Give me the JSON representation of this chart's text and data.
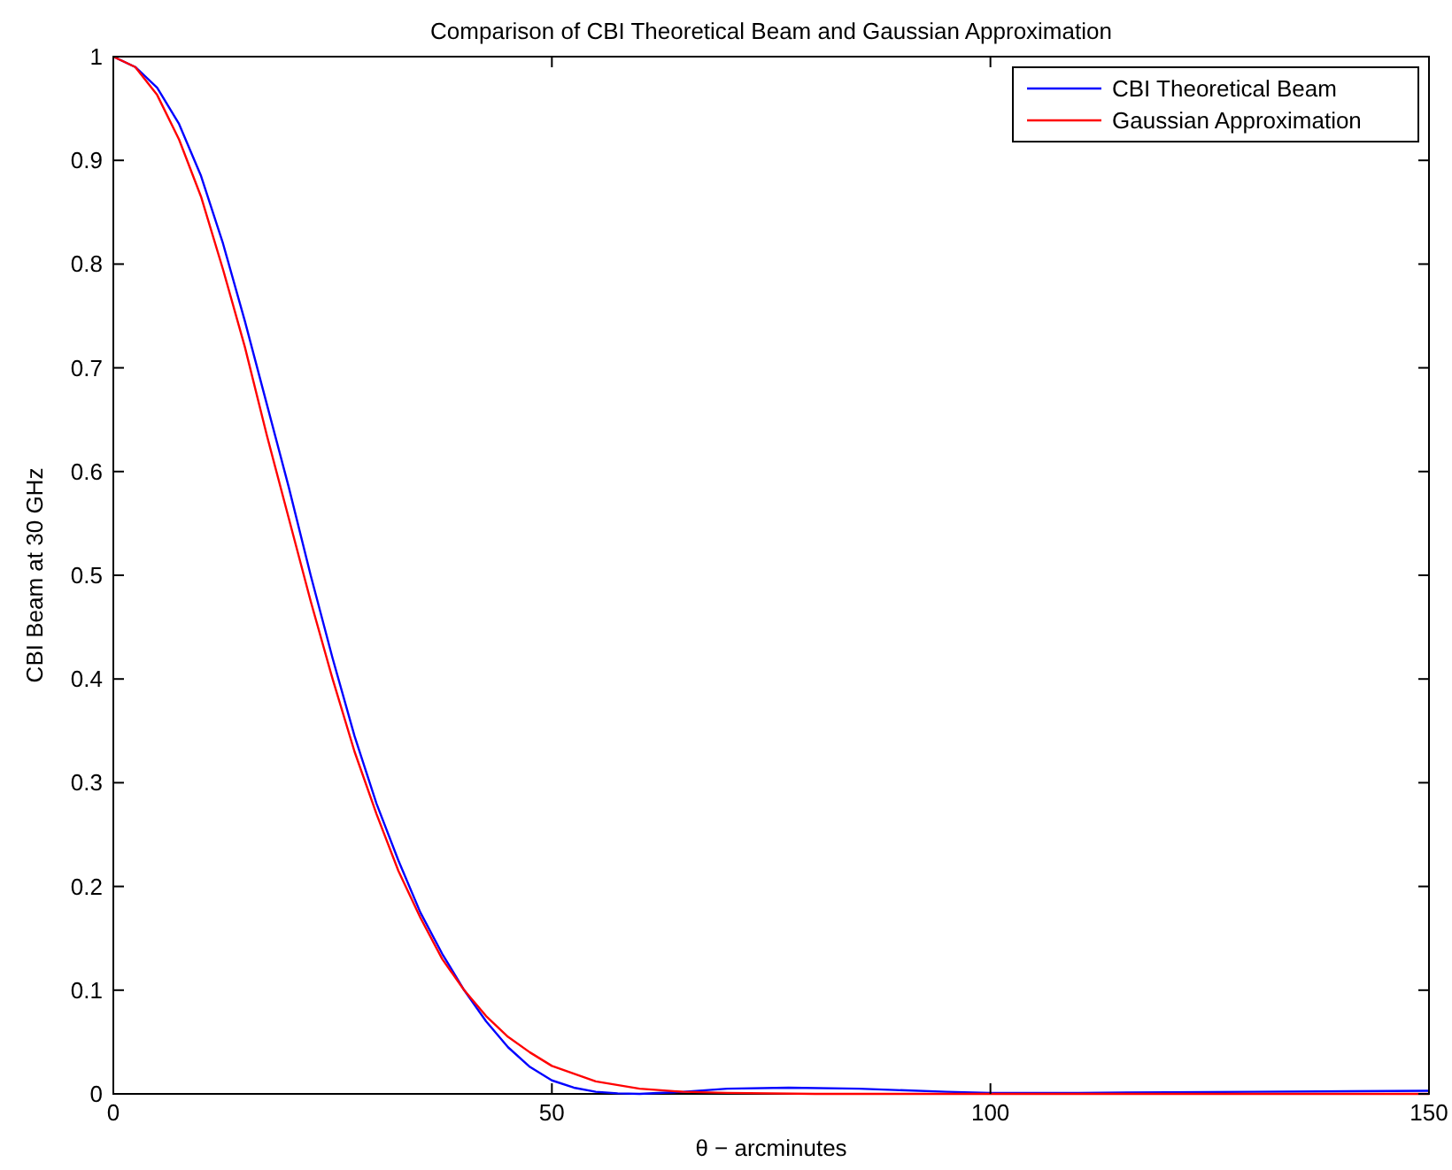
{
  "chart_data": {
    "type": "line",
    "title": "Comparison of CBI Theoretical Beam and Gaussian Approximation",
    "xlabel": "θ − arcminutes",
    "ylabel": "CBI Beam at 30 GHz",
    "xlim": [
      0,
      150
    ],
    "ylim": [
      0,
      1
    ],
    "xticks": [
      0,
      50,
      100,
      150
    ],
    "yticks": [
      0,
      0.1,
      0.2,
      0.3,
      0.4,
      0.5,
      0.6,
      0.7,
      0.8,
      0.9,
      1
    ],
    "grid": false,
    "legend": "top right",
    "line_style": "solid",
    "marker": "none",
    "series": [
      {
        "name": "CBI Theoretical Beam",
        "color": "#0000ff",
        "x": [
          0,
          2.5,
          5,
          7.5,
          10,
          12.5,
          15,
          17.5,
          20,
          22.5,
          25,
          27.5,
          30,
          32.5,
          35,
          37.5,
          40,
          42.5,
          45,
          47.5,
          50,
          52.5,
          55,
          57.5,
          60,
          65,
          70,
          77,
          85,
          95,
          100,
          110,
          130,
          150
        ],
        "values": [
          1,
          0.99,
          0.97,
          0.935,
          0.885,
          0.82,
          0.745,
          0.665,
          0.585,
          0.5,
          0.42,
          0.345,
          0.28,
          0.225,
          0.175,
          0.135,
          0.1,
          0.07,
          0.045,
          0.026,
          0.013,
          0.006,
          0.002,
          0.0005,
          0,
          0.002,
          0.005,
          0.006,
          0.005,
          0.002,
          0.001,
          0.001,
          0.002,
          0.003
        ]
      },
      {
        "name": "Gaussian Approximation",
        "color": "#ff0000",
        "x": [
          0,
          2.5,
          5,
          7.5,
          10,
          12.5,
          15,
          17.5,
          20,
          22.5,
          25,
          27.5,
          30,
          32.5,
          35,
          37.5,
          40,
          42.5,
          45,
          47.5,
          50,
          55,
          60,
          65,
          70,
          80,
          100,
          150
        ],
        "values": [
          1,
          0.99,
          0.963,
          0.92,
          0.865,
          0.795,
          0.72,
          0.635,
          0.555,
          0.475,
          0.4,
          0.33,
          0.27,
          0.215,
          0.17,
          0.13,
          0.1,
          0.075,
          0.055,
          0.04,
          0.027,
          0.012,
          0.005,
          0.002,
          0.001,
          0,
          0,
          0
        ]
      }
    ]
  }
}
